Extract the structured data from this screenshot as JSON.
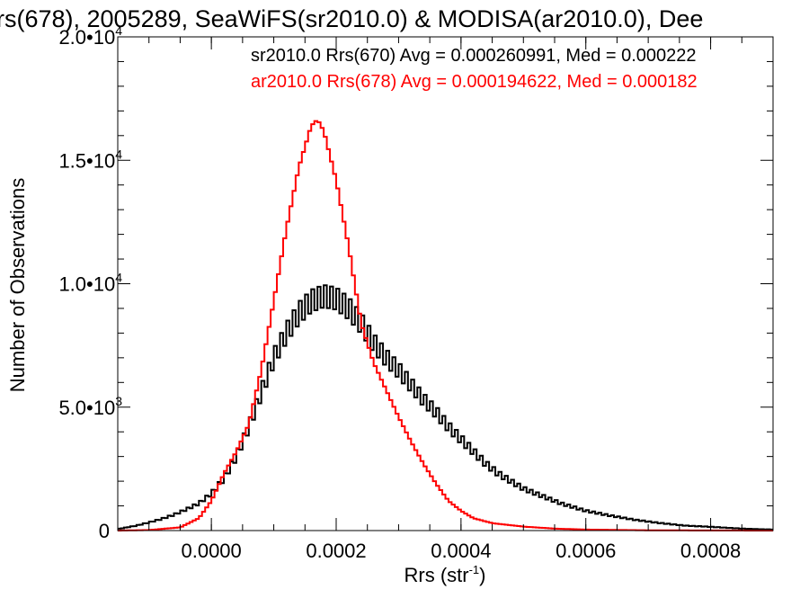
{
  "chart_data": {
    "type": "histogram",
    "title": "rs(678), 2005289, SeaWiFS(sr2010.0) & MODISA(ar2010.0), Dee",
    "xlabel": "Rrs (str",
    "xlabel_exp": "-1",
    "xlabel_close": ")",
    "ylabel": "Number of Observations",
    "xlim": [
      -0.00015,
      0.0009
    ],
    "ylim": [
      0,
      20000
    ],
    "xticks": [
      {
        "value": 0.0,
        "label": "0.0000"
      },
      {
        "value": 0.0002,
        "label": "0.0002"
      },
      {
        "value": 0.0004,
        "label": "0.0004"
      },
      {
        "value": 0.0006,
        "label": "0.0006"
      },
      {
        "value": 0.0008,
        "label": "0.0008"
      }
    ],
    "yticks": [
      {
        "value": 0,
        "label": "0",
        "exp": ""
      },
      {
        "value": 5000,
        "label": "5.0•10",
        "exp": "3"
      },
      {
        "value": 10000,
        "label": "1.0•10",
        "exp": "4"
      },
      {
        "value": 15000,
        "label": "1.5•10",
        "exp": "4"
      },
      {
        "value": 20000,
        "label": "2.0•10",
        "exp": "4"
      }
    ],
    "legend": [
      {
        "text": "sr2010.0 Rrs(670) Avg = 0.000260991, Med = 0.000222",
        "color": "#000000"
      },
      {
        "text": "ar2010.0 Rrs(678) Avg = 0.000194622, Med = 0.000182",
        "color": "#ff0000"
      }
    ],
    "series": [
      {
        "name": "sr2010.0 Rrs(670)",
        "color": "#000000",
        "points": [
          [
            -0.00015,
            60
          ],
          [
            -0.00012,
            200
          ],
          [
            -0.0001,
            330
          ],
          [
            -8e-05,
            470
          ],
          [
            -6e-05,
            640
          ],
          [
            -4e-05,
            860
          ],
          [
            -2e-05,
            1100
          ],
          [
            0.0,
            1500
          ],
          [
            2e-05,
            2100
          ],
          [
            4e-05,
            3000
          ],
          [
            6e-05,
            4200
          ],
          [
            8e-05,
            5600
          ],
          [
            0.0001,
            7000
          ],
          [
            0.00012,
            8000
          ],
          [
            0.00014,
            8800
          ],
          [
            0.00016,
            9300
          ],
          [
            0.00018,
            9500
          ],
          [
            0.0002,
            9400
          ],
          [
            0.00022,
            9000
          ],
          [
            0.00024,
            8400
          ],
          [
            0.00026,
            7600
          ],
          [
            0.00028,
            7000
          ],
          [
            0.0003,
            6500
          ],
          [
            0.00032,
            5900
          ],
          [
            0.00034,
            5300
          ],
          [
            0.00036,
            4800
          ],
          [
            0.00038,
            4200
          ],
          [
            0.0004,
            3700
          ],
          [
            0.00042,
            3200
          ],
          [
            0.00044,
            2700
          ],
          [
            0.00046,
            2300
          ],
          [
            0.00048,
            2000
          ],
          [
            0.0005,
            1700
          ],
          [
            0.00052,
            1500
          ],
          [
            0.00054,
            1300
          ],
          [
            0.00056,
            1100
          ],
          [
            0.00058,
            950
          ],
          [
            0.0006,
            800
          ],
          [
            0.00064,
            600
          ],
          [
            0.00068,
            430
          ],
          [
            0.00072,
            300
          ],
          [
            0.00076,
            200
          ],
          [
            0.0008,
            150
          ],
          [
            0.00085,
            80
          ],
          [
            0.0009,
            40
          ]
        ]
      },
      {
        "name": "ar2010.0 Rrs(678)",
        "color": "#ff0000",
        "points": [
          [
            -0.00015,
            0
          ],
          [
            -0.0001,
            20
          ],
          [
            -5e-05,
            130
          ],
          [
            -2e-05,
            500
          ],
          [
            0.0,
            1200
          ],
          [
            2e-05,
            2300
          ],
          [
            4e-05,
            3200
          ],
          [
            6e-05,
            4300
          ],
          [
            8e-05,
            6500
          ],
          [
            0.0001,
            9300
          ],
          [
            0.00012,
            12200
          ],
          [
            0.00014,
            14700
          ],
          [
            0.00016,
            16400
          ],
          [
            0.00017,
            16650
          ],
          [
            0.00018,
            16200
          ],
          [
            0.0002,
            14200
          ],
          [
            0.00022,
            11500
          ],
          [
            0.00024,
            8400
          ],
          [
            0.00026,
            6800
          ],
          [
            0.00028,
            5700
          ],
          [
            0.0003,
            4600
          ],
          [
            0.00032,
            3600
          ],
          [
            0.00034,
            2700
          ],
          [
            0.00036,
            1900
          ],
          [
            0.00038,
            1200
          ],
          [
            0.0004,
            800
          ],
          [
            0.00042,
            500
          ],
          [
            0.00045,
            300
          ],
          [
            0.0005,
            160
          ],
          [
            0.00055,
            80
          ],
          [
            0.0006,
            40
          ],
          [
            0.0007,
            10
          ],
          [
            0.0009,
            0
          ]
        ]
      }
    ],
    "grid": false,
    "legend_position": "top-right"
  }
}
